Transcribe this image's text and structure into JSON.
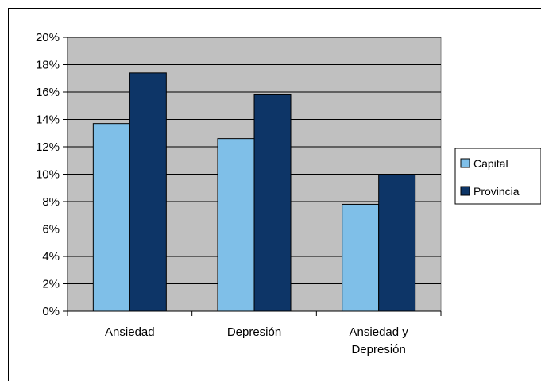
{
  "chart_data": {
    "type": "bar",
    "categories": [
      "Ansiedad",
      "Depresión",
      "Ansiedad y Depresión"
    ],
    "category_lines": [
      [
        "Ansiedad"
      ],
      [
        "Depresión"
      ],
      [
        "Ansiedad y",
        "Depresión"
      ]
    ],
    "series": [
      {
        "name": "Capital",
        "values": [
          13.7,
          12.6,
          7.8
        ],
        "color": "#7fbfe8"
      },
      {
        "name": "Provincia",
        "values": [
          17.4,
          15.8,
          10.0
        ],
        "color": "#0d3567"
      }
    ],
    "ylim": [
      0,
      20
    ],
    "yticks": [
      "0%",
      "2%",
      "4%",
      "6%",
      "8%",
      "10%",
      "12%",
      "14%",
      "16%",
      "18%",
      "20%"
    ],
    "title": "",
    "xlabel": "",
    "ylabel": "",
    "grid": true,
    "plot_background": "#c0c0c0",
    "legend_position": "right"
  }
}
